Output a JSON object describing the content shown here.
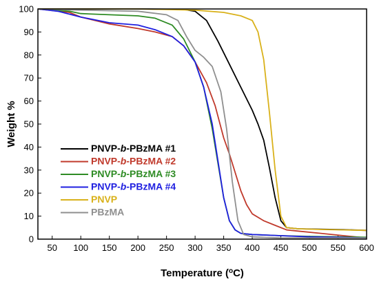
{
  "chart_data": {
    "type": "line",
    "xlabel": {
      "main": "Temperature (",
      "sup": "o",
      "unit": "C)"
    },
    "ylabel": "Weight %",
    "xlim": [
      25,
      600
    ],
    "ylim": [
      0,
      100
    ],
    "xticks": [
      50,
      100,
      150,
      200,
      250,
      300,
      350,
      400,
      450,
      500,
      550,
      600
    ],
    "yticks": [
      0,
      10,
      20,
      30,
      40,
      50,
      60,
      70,
      80,
      90,
      100
    ],
    "legend_position": "bottom-left",
    "series": [
      {
        "name": "PNVP-b-PBzMA #1",
        "name_parts": [
          "PNVP-",
          "b",
          "-PBzMA #1"
        ],
        "color": "#000000",
        "points": [
          [
            25,
            100
          ],
          [
            100,
            100
          ],
          [
            200,
            100
          ],
          [
            280,
            99.8
          ],
          [
            300,
            99
          ],
          [
            320,
            95
          ],
          [
            340,
            86
          ],
          [
            360,
            76
          ],
          [
            380,
            66
          ],
          [
            400,
            56
          ],
          [
            410,
            50
          ],
          [
            420,
            43
          ],
          [
            430,
            31
          ],
          [
            440,
            18
          ],
          [
            450,
            8
          ],
          [
            460,
            5
          ],
          [
            480,
            4.5
          ],
          [
            520,
            4.3
          ],
          [
            560,
            4.1
          ],
          [
            600,
            3.8
          ]
        ]
      },
      {
        "name": "PNVP-b-PBzMA #2",
        "name_parts": [
          "PNVP-",
          "b",
          "-PBzMA #2"
        ],
        "color": "#c0392b",
        "points": [
          [
            25,
            100
          ],
          [
            80,
            98.5
          ],
          [
            100,
            96.5
          ],
          [
            150,
            93.5
          ],
          [
            200,
            91.5
          ],
          [
            230,
            90
          ],
          [
            260,
            88
          ],
          [
            280,
            84
          ],
          [
            300,
            77
          ],
          [
            320,
            68
          ],
          [
            335,
            58
          ],
          [
            350,
            44
          ],
          [
            360,
            37
          ],
          [
            370,
            29
          ],
          [
            380,
            21
          ],
          [
            390,
            15
          ],
          [
            400,
            11
          ],
          [
            420,
            8
          ],
          [
            440,
            6
          ],
          [
            460,
            4
          ],
          [
            480,
            3.5
          ],
          [
            520,
            2.5
          ],
          [
            560,
            1.5
          ],
          [
            600,
            0.5
          ]
        ]
      },
      {
        "name": "PNVP-b-PBzMA #3",
        "name_parts": [
          "PNVP-",
          "b",
          "-PBzMA #3"
        ],
        "color": "#2e8b24",
        "points": [
          [
            25,
            100
          ],
          [
            80,
            99
          ],
          [
            100,
            98
          ],
          [
            150,
            97.5
          ],
          [
            200,
            97
          ],
          [
            230,
            96
          ],
          [
            260,
            93
          ],
          [
            280,
            87
          ],
          [
            300,
            77
          ],
          [
            315,
            66
          ],
          [
            330,
            48
          ],
          [
            340,
            33
          ],
          [
            350,
            18
          ],
          [
            360,
            8
          ],
          [
            370,
            4
          ],
          [
            380,
            2.5
          ],
          [
            400,
            2
          ],
          [
            450,
            1.5
          ],
          [
            500,
            1.2
          ],
          [
            550,
            1
          ],
          [
            600,
            0.8
          ]
        ]
      },
      {
        "name": "PNVP-b-PBzMA #4",
        "name_parts": [
          "PNVP-",
          "b",
          "-PBzMA #4"
        ],
        "color": "#1f1fe0",
        "points": [
          [
            25,
            100
          ],
          [
            60,
            99
          ],
          [
            100,
            96.5
          ],
          [
            150,
            94
          ],
          [
            200,
            93
          ],
          [
            230,
            91
          ],
          [
            260,
            88
          ],
          [
            280,
            84
          ],
          [
            300,
            77
          ],
          [
            315,
            66
          ],
          [
            330,
            50
          ],
          [
            340,
            34
          ],
          [
            350,
            18
          ],
          [
            360,
            8
          ],
          [
            370,
            4
          ],
          [
            380,
            2.5
          ],
          [
            400,
            2
          ],
          [
            450,
            1.5
          ],
          [
            500,
            1
          ],
          [
            550,
            0.8
          ],
          [
            600,
            0.5
          ]
        ]
      },
      {
        "name": "PNVP",
        "name_parts": [
          "PNVP",
          "",
          ""
        ],
        "color": "#d9b11a",
        "points": [
          [
            25,
            100
          ],
          [
            100,
            100
          ],
          [
            200,
            100
          ],
          [
            300,
            99.5
          ],
          [
            350,
            98.5
          ],
          [
            380,
            97
          ],
          [
            400,
            95
          ],
          [
            410,
            90
          ],
          [
            420,
            78
          ],
          [
            430,
            55
          ],
          [
            440,
            30
          ],
          [
            450,
            10
          ],
          [
            460,
            5
          ],
          [
            480,
            4.5
          ],
          [
            520,
            4.2
          ],
          [
            560,
            4
          ],
          [
            600,
            3.8
          ]
        ]
      },
      {
        "name": "PBzMA",
        "name_parts": [
          "PBzMA",
          "",
          ""
        ],
        "color": "#8f8f8f",
        "points": [
          [
            25,
            100
          ],
          [
            100,
            99.5
          ],
          [
            200,
            99
          ],
          [
            250,
            97.5
          ],
          [
            270,
            95
          ],
          [
            285,
            88
          ],
          [
            300,
            82
          ],
          [
            315,
            79
          ],
          [
            330,
            75
          ],
          [
            345,
            64
          ],
          [
            355,
            48
          ],
          [
            365,
            25
          ],
          [
            375,
            8
          ],
          [
            385,
            2
          ],
          [
            400,
            1
          ],
          [
            450,
            0.5
          ],
          [
            500,
            0.5
          ],
          [
            550,
            0.5
          ],
          [
            600,
            0.5
          ]
        ]
      }
    ]
  }
}
